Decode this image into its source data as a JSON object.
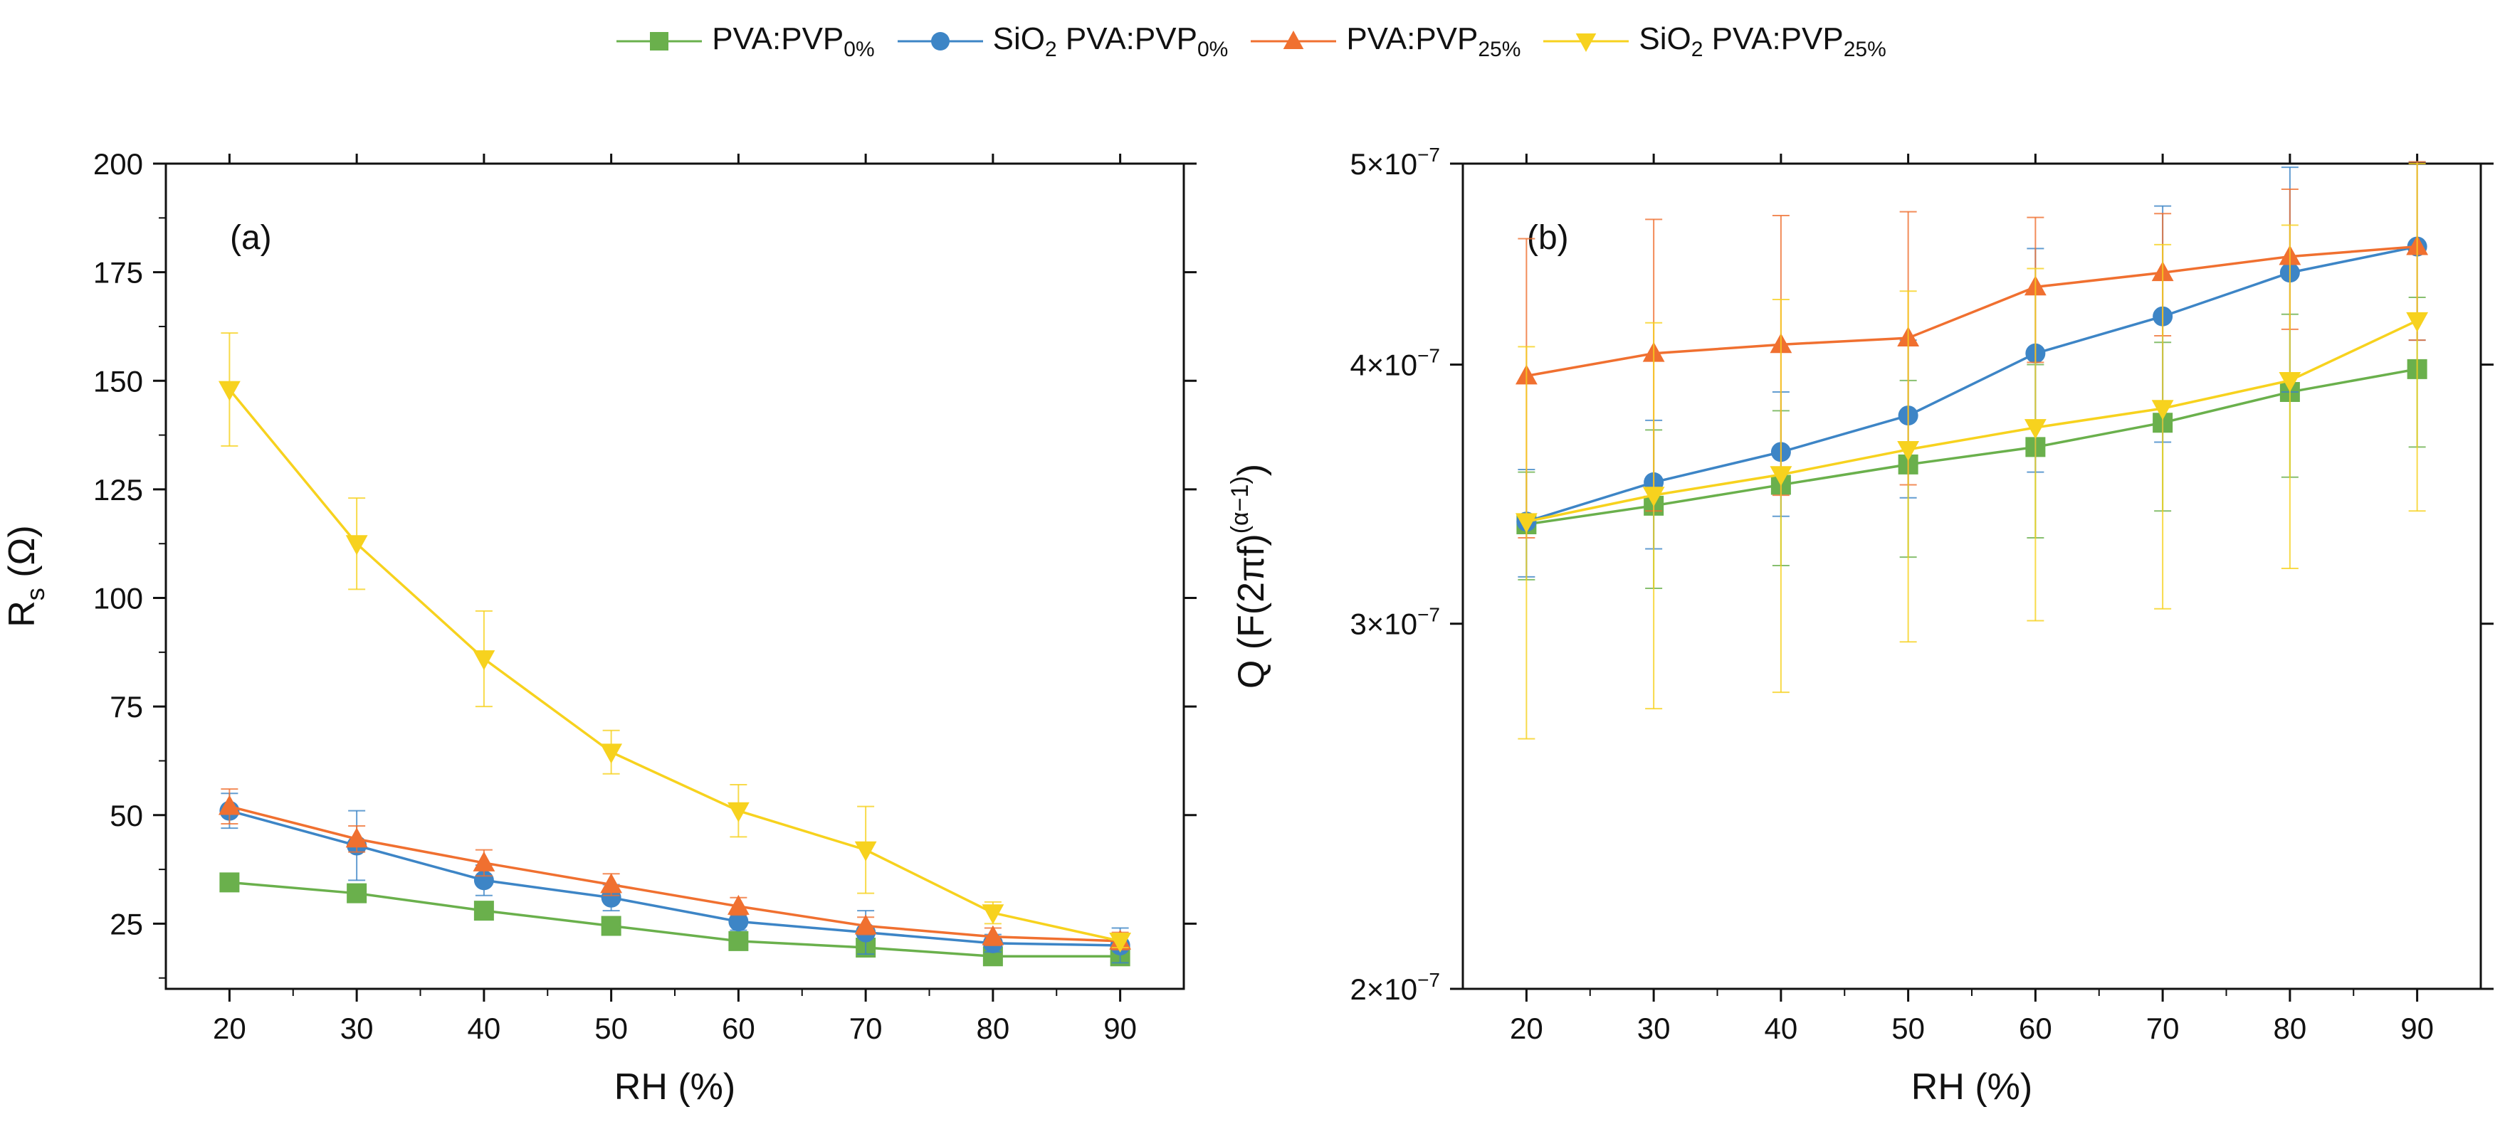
{
  "legend": [
    {
      "base": "PVA:PVP",
      "sub": "0%",
      "color": "#6ab04c",
      "marker": "square"
    },
    {
      "base": "SiO",
      "sub2": "2",
      "mid": " PVA:PVP",
      "sub": "0%",
      "color": "#3d85c6",
      "marker": "circle"
    },
    {
      "base": "PVA:PVP",
      "sub": "25%",
      "color": "#f07030",
      "marker": "triangle-up"
    },
    {
      "base": "SiO",
      "sub2": "2",
      "mid": " PVA:PVP",
      "sub": "25%",
      "color": "#f7d21e",
      "marker": "triangle-down"
    }
  ],
  "chart_data": [
    {
      "type": "line",
      "panel_label": "(a)",
      "xlabel": "RH (%)",
      "ylabel_main": "R",
      "ylabel_sub": "s",
      "ylabel_unit": " (Ω)",
      "x": [
        20,
        30,
        40,
        50,
        60,
        70,
        80,
        90
      ],
      "xlim": [
        15,
        95
      ],
      "ylim": [
        10,
        200
      ],
      "yticks": [
        25,
        50,
        75,
        100,
        125,
        150,
        175,
        200
      ],
      "yticklabels": [
        "25",
        "50",
        "75",
        "100",
        "125",
        "150",
        "175",
        "200"
      ],
      "xticklabels": [
        "20",
        "30",
        "40",
        "50",
        "60",
        "70",
        "80",
        "90"
      ],
      "series": [
        {
          "name": "PVA:PVP 0%",
          "values": [
            34.5,
            32,
            28,
            24.5,
            21,
            19.5,
            17.5,
            17.5
          ],
          "errors": [
            0,
            0,
            0,
            0,
            0,
            0,
            0,
            0
          ]
        },
        {
          "name": "SiO2 PVA:PVP 0%",
          "values": [
            51,
            43,
            35,
            31,
            25.5,
            23,
            20.5,
            20
          ],
          "errors": [
            4,
            8,
            3.5,
            3,
            2,
            5,
            2,
            4
          ]
        },
        {
          "name": "PVA:PVP 25%",
          "values": [
            52,
            44.5,
            39,
            34,
            29,
            24.5,
            22,
            21
          ],
          "errors": [
            4,
            3,
            3,
            2.5,
            2,
            2,
            2,
            2
          ]
        },
        {
          "name": "SiO2 PVA:PVP 25%",
          "values": [
            148,
            112.5,
            86,
            64.5,
            51,
            42,
            27.5,
            21
          ],
          "errors": [
            13,
            10.5,
            11,
            5,
            6,
            10,
            2.5,
            1.5
          ]
        }
      ]
    },
    {
      "type": "line",
      "panel_label": "(b)",
      "xlabel": "RH (%)",
      "ylabel": "Q (F(2πf)",
      "ylabel_sup": "(α−1)",
      "ylabel_end": ")",
      "yscale": "log",
      "x": [
        20,
        30,
        40,
        50,
        60,
        70,
        80,
        90
      ],
      "xlim": [
        15,
        95
      ],
      "ylim": [
        2e-07,
        5e-07
      ],
      "yticks": [
        2e-07,
        3e-07,
        4e-07,
        5e-07
      ],
      "yticklabels": [
        "2×10",
        "3×10",
        "4×10",
        "5×10"
      ],
      "ytick_exp": "−7",
      "xticklabels": [
        "20",
        "30",
        "40",
        "50",
        "60",
        "70",
        "80",
        "90"
      ],
      "series": [
        {
          "name": "PVA:PVP 0%",
          "values": [
            3.35e-07,
            3.42e-07,
            3.5e-07,
            3.58e-07,
            3.65e-07,
            3.75e-07,
            3.88e-07,
            3.98e-07
          ],
          "errors": [
            2e-08,
            3e-08,
            3e-08,
            3.5e-08,
            3.5e-08,
            3.5e-08,
            3.5e-08,
            3.3e-08
          ]
        },
        {
          "name": "SiO2 PVA:PVP 0%",
          "values": [
            3.36e-07,
            3.51e-07,
            3.63e-07,
            3.78e-07,
            4.05e-07,
            4.22e-07,
            4.43e-07,
            4.56e-07
          ],
          "errors": [
            2e-08,
            2.5e-08,
            2.5e-08,
            3.3e-08,
            5e-08,
            5.5e-08,
            5.5e-08,
            4.5e-08
          ]
        },
        {
          "name": "PVA:PVP 25%",
          "values": [
            3.95e-07,
            4.05e-07,
            4.09e-07,
            4.12e-07,
            4.36e-07,
            4.43e-07,
            4.51e-07,
            4.56e-07
          ],
          "errors": [
            6.5e-08,
            6.5e-08,
            6.3e-08,
            6.2e-08,
            3.5e-08,
            3e-08,
            3.5e-08,
            4.5e-08
          ]
        },
        {
          "name": "SiO2 PVA:PVP 25%",
          "values": [
            3.36e-07,
            3.46e-07,
            3.54e-07,
            3.64e-07,
            3.73e-07,
            3.81e-07,
            3.93e-07,
            4.2e-07
          ],
          "errors": [
            7.2e-08,
            7.3e-08,
            7.6e-08,
            7e-08,
            7.2e-08,
            7.6e-08,
            7.4e-08,
            8e-08
          ]
        }
      ]
    }
  ]
}
